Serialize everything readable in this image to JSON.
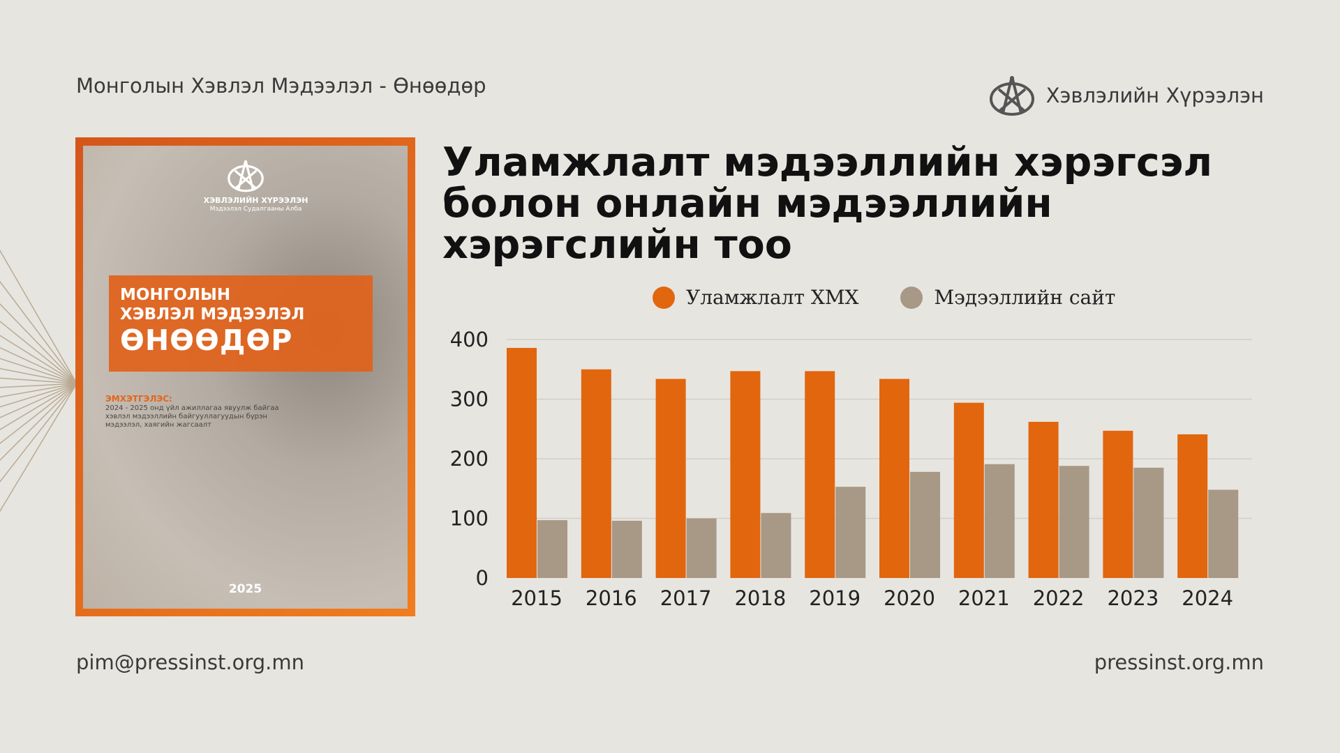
{
  "header": {
    "left_title": "Монголын Хэвлэл Мэдээлэл - Өнөөдөр",
    "org_name": "Хэвлэлийн Хүрээлэн"
  },
  "cover": {
    "org_name": "ХЭВЛЭЛИЙН ХҮРЭЭЛЭН",
    "org_sub": "Мэдээлэл Судалгааны Алба",
    "title_line1": "МОНГОЛЫН",
    "title_line2": "ХЭВЛЭЛ МЭДЭЭЛЭЛ",
    "title_line3": "ӨНӨӨДӨР",
    "editor_label": "ЭМХЭТГЭЛЭС:",
    "editor_text": "2024 - 2025 онд үйл ажиллагаа явуулж байгаа хэвлэл мэдээллийн байгууллагуудын бүрэн мэдээлэл, хаягийн жагсаалт",
    "year": "2025"
  },
  "footer": {
    "email": "pim@pressinst.org.mn",
    "website": "pressinst.org.mn"
  },
  "colors": {
    "orange": "#e1660e",
    "grey": "#a89886",
    "accent": "#ee7a1e"
  },
  "chart_data": {
    "type": "bar",
    "title": "Уламжлалт мэдээллийн хэрэгсэл болон онлайн мэдээллийн хэрэгслийн тоо",
    "categories": [
      "2015",
      "2016",
      "2017",
      "2018",
      "2019",
      "2020",
      "2021",
      "2022",
      "2023",
      "2024"
    ],
    "series": [
      {
        "name": "Уламжлалт ХМХ",
        "color": "#e1660e",
        "values": [
          386,
          350,
          334,
          347,
          347,
          334,
          294,
          262,
          247,
          241
        ]
      },
      {
        "name": "Мэдээллийн сайт",
        "color": "#a89886",
        "values": [
          97,
          96,
          100,
          109,
          153,
          178,
          191,
          188,
          185,
          148
        ]
      }
    ],
    "yticks": [
      "0",
      "100",
      "200",
      "300",
      "400"
    ],
    "ylim": [
      0,
      400
    ],
    "grid": true,
    "legend": "top-center",
    "xlabel": "",
    "ylabel": ""
  }
}
